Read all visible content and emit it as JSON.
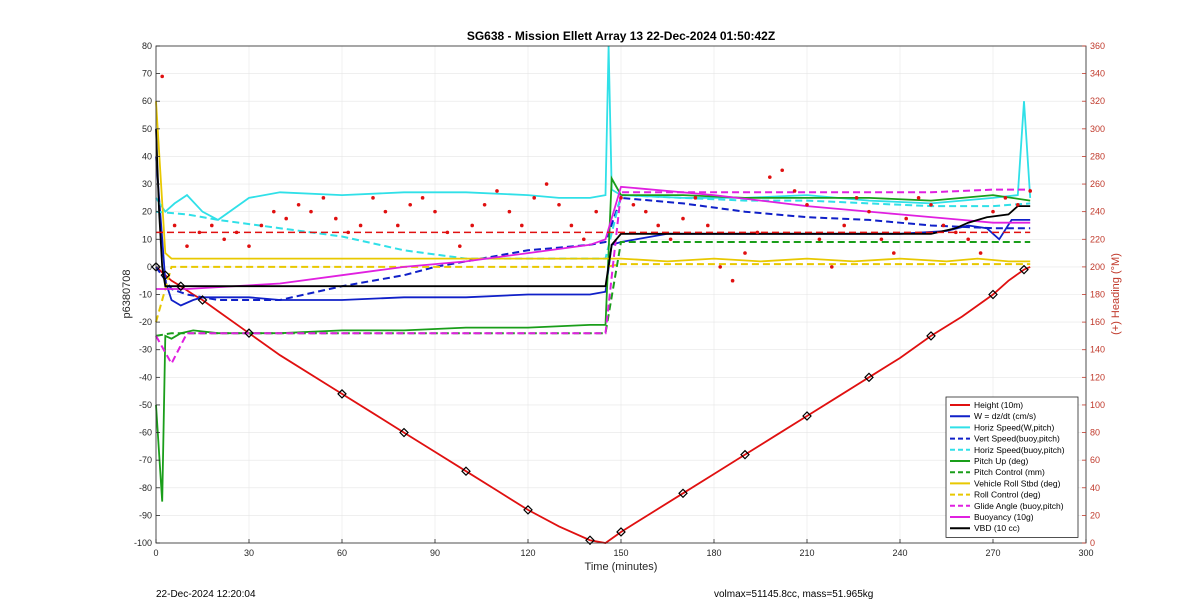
{
  "chart_data": {
    "type": "line",
    "title": "SG638 - Mission Ellett Array 13 22-Dec-2024 01:50:42Z",
    "xlabel": "Time (minutes)",
    "ylabel": "p6380708",
    "y2label": "(+) Heading (°M)",
    "xlim": [
      0,
      300
    ],
    "ylim": [
      -100,
      80
    ],
    "y2lim": [
      0,
      360
    ],
    "xticks": [
      0,
      30,
      60,
      90,
      120,
      150,
      180,
      210,
      240,
      270,
      300
    ],
    "yticks": [
      -100,
      -90,
      -80,
      -70,
      -60,
      -50,
      -40,
      -30,
      -20,
      -10,
      0,
      10,
      20,
      30,
      40,
      50,
      60,
      70,
      80
    ],
    "y2ticks": [
      0,
      20,
      40,
      60,
      80,
      100,
      120,
      140,
      160,
      180,
      200,
      220,
      240,
      260,
      280,
      300,
      320,
      340,
      360
    ],
    "legend_position": "bottom-right",
    "series": [
      {
        "name": "Height (10m)",
        "color": "#e01010",
        "style": "solid",
        "x": [
          0,
          1,
          3,
          5,
          8,
          12,
          15,
          20,
          30,
          40,
          60,
          70,
          80,
          90,
          100,
          110,
          120,
          130,
          140,
          145,
          150,
          160,
          170,
          180,
          190,
          200,
          210,
          220,
          230,
          240,
          250,
          260,
          270,
          275,
          280,
          282
        ],
        "y": [
          0,
          -1,
          -3,
          -5,
          -7,
          -10,
          -12,
          -16,
          -24,
          -32,
          -46,
          -53,
          -60,
          -67,
          -74,
          -81,
          -88,
          -94,
          -99,
          -100,
          -96,
          -89,
          -82,
          -75,
          -68,
          -61,
          -54,
          -47,
          -40,
          -33,
          -25,
          -18,
          -10,
          -5,
          -1,
          0
        ]
      },
      {
        "name": "W = dz/dt (cm/s)",
        "color": "#1020c8",
        "style": "solid",
        "x": [
          0,
          3,
          5,
          8,
          12,
          15,
          20,
          30,
          40,
          60,
          80,
          100,
          120,
          140,
          145,
          147,
          150,
          155,
          165,
          180,
          200,
          220,
          240,
          255,
          262,
          268,
          272,
          276,
          282
        ],
        "y": [
          40,
          -5,
          -12,
          -14,
          -12,
          -11,
          -11,
          -11,
          -12,
          -12,
          -11,
          -11,
          -10,
          -10,
          -9,
          8,
          9,
          10,
          12,
          12,
          12,
          12,
          12,
          13,
          15,
          14,
          10,
          17,
          17
        ]
      },
      {
        "name": "Horiz Speed(W,pitch)",
        "color": "#30e0e8",
        "style": "solid",
        "x": [
          0,
          3,
          6,
          10,
          15,
          20,
          30,
          40,
          60,
          80,
          100,
          120,
          130,
          140,
          145,
          146,
          147,
          150,
          170,
          190,
          210,
          230,
          250,
          260,
          270,
          278,
          280,
          282
        ],
        "y": [
          25,
          20,
          23,
          26,
          20,
          17,
          25,
          27,
          26,
          27,
          27,
          26,
          25,
          25,
          26,
          80,
          28,
          26,
          25,
          25,
          26,
          24,
          23,
          24,
          25,
          26,
          60,
          25
        ]
      },
      {
        "name": "Vert Speed(buoy,pitch)",
        "color": "#1020c8",
        "style": "dashed",
        "x": [
          0,
          5,
          10,
          20,
          40,
          60,
          80,
          90,
          100,
          110,
          120,
          130,
          140,
          145,
          150,
          170,
          190,
          210,
          230,
          250,
          270,
          282
        ],
        "y": [
          0,
          -8,
          -10,
          -12,
          -12,
          -7,
          -3,
          0,
          2,
          4,
          6,
          7,
          8,
          9,
          25,
          23,
          20,
          18,
          17,
          15,
          14,
          14
        ]
      },
      {
        "name": "Horiz Speed(buoy,pitch)",
        "color": "#30e0e8",
        "style": "dashed",
        "x": [
          0,
          10,
          20,
          40,
          60,
          80,
          100,
          120,
          140,
          145,
          150,
          170,
          190,
          210,
          230,
          250,
          270,
          282
        ],
        "y": [
          20,
          19,
          17,
          14,
          11,
          6,
          3,
          3,
          3,
          3,
          26,
          25,
          24,
          24,
          23,
          22,
          22,
          23
        ]
      },
      {
        "name": "Pitch Up (deg)",
        "color": "#1a9e1a",
        "style": "solid",
        "x": [
          0,
          2,
          3,
          5,
          8,
          12,
          20,
          40,
          60,
          80,
          100,
          120,
          140,
          145,
          147,
          150,
          170,
          190,
          210,
          230,
          250,
          260,
          270,
          282
        ],
        "y": [
          -50,
          -85,
          -25,
          -26,
          -24,
          -23,
          -24,
          -24,
          -23,
          -23,
          -22,
          -22,
          -21,
          -21,
          32,
          26,
          26,
          25,
          25,
          25,
          24,
          25,
          26,
          24
        ]
      },
      {
        "name": "Pitch Control (mm)",
        "color": "#1a9e1a",
        "style": "dashed",
        "x": [
          0,
          5,
          10,
          20,
          40,
          60,
          80,
          100,
          120,
          140,
          145,
          150,
          170,
          190,
          210,
          230,
          250,
          270,
          282
        ],
        "y": [
          -25,
          -24,
          -24,
          -24,
          -24,
          -24,
          -24,
          -24,
          -24,
          -24,
          -24,
          9,
          9,
          9,
          9,
          9,
          9,
          9,
          9
        ]
      },
      {
        "name": "Vehicle Roll Stbd (deg)",
        "color": "#e8c800",
        "style": "solid",
        "x": [
          0,
          3,
          5,
          10,
          20,
          40,
          60,
          80,
          100,
          120,
          140,
          145,
          150,
          165,
          180,
          195,
          210,
          225,
          240,
          255,
          265,
          275,
          282
        ],
        "y": [
          60,
          5,
          3,
          3,
          3,
          3,
          3,
          3,
          3,
          3,
          3,
          3,
          3,
          2,
          3,
          2,
          3,
          2,
          3,
          2,
          3,
          2,
          2
        ]
      },
      {
        "name": "Roll Control (deg)",
        "color": "#e8c800",
        "style": "dashed",
        "x": [
          0,
          5,
          10,
          20,
          40,
          60,
          80,
          100,
          120,
          140,
          145,
          150,
          170,
          190,
          210,
          230,
          250,
          270,
          282
        ],
        "y": [
          -20,
          0,
          0,
          0,
          0,
          0,
          0,
          0,
          0,
          0,
          0,
          1,
          1,
          1,
          1,
          1,
          1,
          1,
          1
        ]
      },
      {
        "name": "Glide Angle (buoy,pitch)",
        "color": "#e020e0",
        "style": "dashed",
        "x": [
          0,
          5,
          10,
          20,
          40,
          60,
          80,
          100,
          120,
          140,
          145,
          150,
          170,
          190,
          210,
          230,
          250,
          270,
          282
        ],
        "y": [
          -25,
          -35,
          -24,
          -24,
          -24,
          -24,
          -24,
          -24,
          -24,
          -24,
          -24,
          27,
          27,
          27,
          27,
          27,
          27,
          28,
          28
        ]
      },
      {
        "name": "Buoyancy (10g)",
        "color": "#e020e0",
        "style": "solid",
        "x": [
          0,
          5,
          10,
          40,
          60,
          80,
          100,
          120,
          140,
          145,
          150,
          180,
          210,
          240,
          260,
          270,
          282
        ],
        "y": [
          -8,
          -8,
          -8,
          -6,
          -3,
          0,
          2,
          5,
          8,
          10,
          29,
          26,
          22,
          19,
          17,
          16,
          16
        ]
      },
      {
        "name": "VBD (10 cc)",
        "color": "#000000",
        "style": "solid",
        "x": [
          0,
          1,
          2,
          3,
          5,
          10,
          20,
          40,
          60,
          80,
          100,
          120,
          140,
          145,
          147,
          150,
          170,
          190,
          210,
          230,
          250,
          258,
          262,
          268,
          275,
          278,
          282
        ],
        "y": [
          50,
          20,
          0,
          -7,
          -7,
          -7,
          -7,
          -7,
          -7,
          -7,
          -7,
          -7,
          -7,
          -7,
          8,
          12,
          12,
          12,
          12,
          12,
          12,
          14,
          16,
          18,
          19,
          22,
          22
        ]
      }
    ],
    "heading_series": {
      "axis": "right",
      "color": "#e01010",
      "marker": "dot",
      "x": [
        2,
        6,
        10,
        14,
        18,
        22,
        26,
        30,
        34,
        38,
        42,
        46,
        50,
        54,
        58,
        62,
        66,
        70,
        74,
        78,
        82,
        86,
        90,
        94,
        98,
        102,
        106,
        110,
        114,
        118,
        122,
        126,
        130,
        134,
        138,
        142,
        150,
        154,
        158,
        162,
        166,
        170,
        174,
        178,
        182,
        186,
        190,
        194,
        198,
        202,
        206,
        210,
        214,
        218,
        222,
        226,
        230,
        234,
        238,
        242,
        246,
        250,
        254,
        258,
        262,
        266,
        270,
        274,
        278,
        282
      ],
      "y": [
        338,
        230,
        215,
        225,
        230,
        220,
        225,
        215,
        230,
        240,
        235,
        245,
        240,
        250,
        235,
        225,
        230,
        250,
        240,
        230,
        245,
        250,
        240,
        225,
        215,
        230,
        245,
        255,
        240,
        230,
        250,
        260,
        245,
        230,
        220,
        240,
        250,
        245,
        240,
        230,
        220,
        235,
        250,
        230,
        200,
        190,
        210,
        225,
        265,
        270,
        255,
        245,
        220,
        200,
        230,
        250,
        240,
        220,
        210,
        235,
        250,
        245,
        230,
        225,
        220,
        210,
        240,
        250,
        245,
        255
      ],
      "marker_every_down": []
    },
    "heading_reference_lines": [
      {
        "color": "#e01010",
        "style": "dashed",
        "x": [
          0,
          282
        ],
        "y": [
          225,
          225
        ]
      }
    ]
  },
  "footer": {
    "left": "22-Dec-2024 12:20:04",
    "right": "volmax=51145.8cc, mass=51.965kg"
  }
}
